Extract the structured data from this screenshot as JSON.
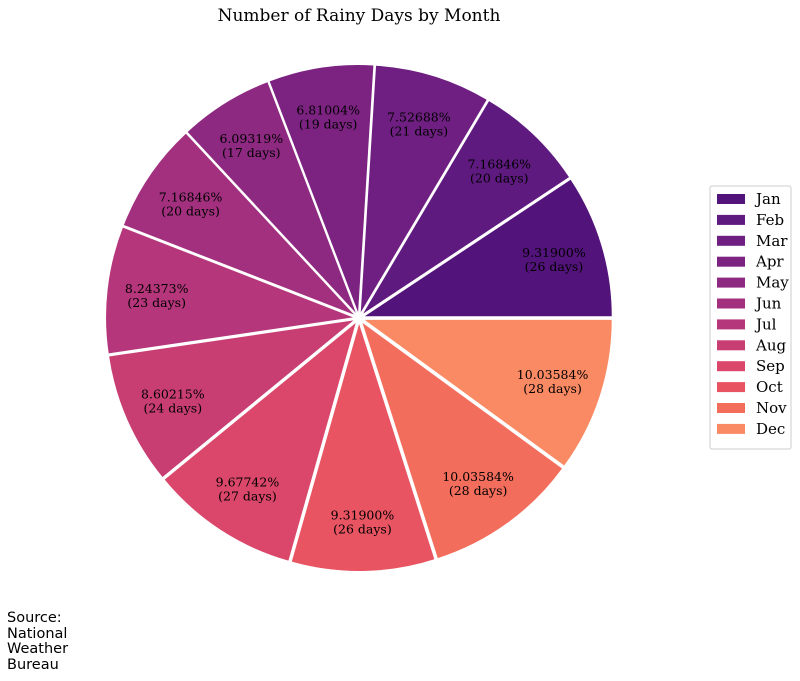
{
  "chart_data": {
    "type": "pie",
    "title": "Number of Rainy Days by Month",
    "categories": [
      "Jan",
      "Feb",
      "Mar",
      "Apr",
      "May",
      "Jun",
      "Jul",
      "Aug",
      "Sep",
      "Oct",
      "Nov",
      "Dec"
    ],
    "values": [
      26,
      20,
      21,
      19,
      17,
      20,
      23,
      24,
      27,
      26,
      28,
      28
    ],
    "labels": [
      {
        "percent": "9.31900%",
        "days": "(26 days)"
      },
      {
        "percent": "7.16846%",
        "days": "(20 days)"
      },
      {
        "percent": "7.52688%",
        "days": "(21 days)"
      },
      {
        "percent": "6.81004%",
        "days": "(19 days)"
      },
      {
        "percent": "6.09319%",
        "days": "(17 days)"
      },
      {
        "percent": "7.16846%",
        "days": "(20 days)"
      },
      {
        "percent": "8.24373%",
        "days": "(23 days)"
      },
      {
        "percent": "8.60215%",
        "days": "(24 days)"
      },
      {
        "percent": "9.67742%",
        "days": "(27 days)"
      },
      {
        "percent": "9.31900%",
        "days": "(26 days)"
      },
      {
        "percent": "10.03584%",
        "days": "(28 days)"
      },
      {
        "percent": "10.03584%",
        "days": "(28 days)"
      }
    ],
    "colors": [
      "#52137a",
      "#5f1a80",
      "#6e1f81",
      "#7c2382",
      "#8d2981",
      "#a2307e",
      "#b5367a",
      "#c83e73",
      "#db476a",
      "#e95462",
      "#f26d5c",
      "#fa8a64"
    ],
    "start_angle": 0,
    "direction": "counterclockwise",
    "exploded": true,
    "legend_position": "right"
  },
  "source": {
    "lines": [
      "Source:",
      "National",
      "Weather",
      "Bureau"
    ]
  }
}
